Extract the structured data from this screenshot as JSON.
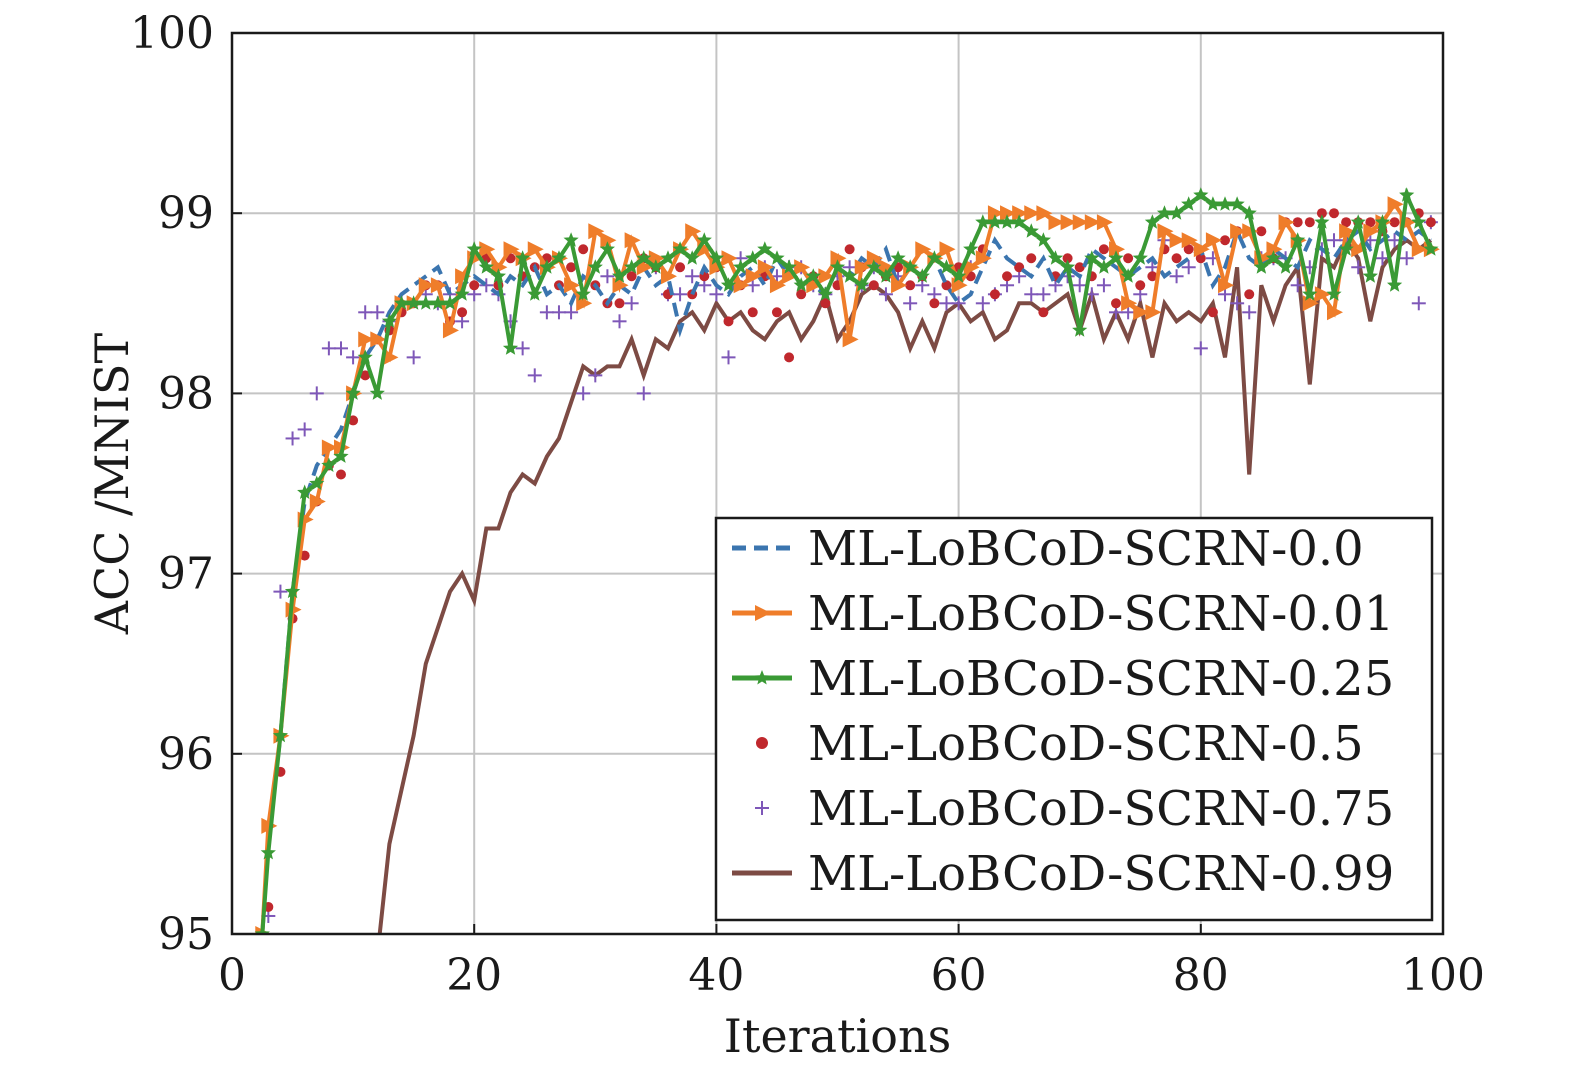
{
  "chart_data": {
    "type": "line",
    "xlabel": "Iterations",
    "ylabel": "ACC /MNIST",
    "xlim": [
      0,
      100
    ],
    "ylim": [
      95,
      100
    ],
    "xticks": [
      "0",
      "20",
      "40",
      "60",
      "80",
      "100"
    ],
    "yticks": [
      "95",
      "96",
      "97",
      "98",
      "99",
      "100"
    ],
    "grid": true,
    "legend_position": "bottom-right",
    "series": [
      {
        "name": "ML-LoBCoD-SCRN-0.0",
        "style": "dashed",
        "color": "#3b75af",
        "x": [
          2.5,
          3,
          4,
          5,
          6,
          7,
          8,
          9,
          10,
          11,
          12,
          13,
          14,
          15,
          16,
          17,
          18,
          19,
          20,
          21,
          22,
          23,
          24,
          25,
          26,
          27,
          28,
          29,
          30,
          31,
          32,
          33,
          34,
          35,
          36,
          37,
          38,
          39,
          40,
          41,
          42,
          43,
          44,
          45,
          46,
          47,
          48,
          49,
          50,
          51,
          52,
          53,
          54,
          55,
          56,
          57,
          58,
          59,
          60,
          61,
          62,
          63,
          64,
          65,
          66,
          67,
          68,
          69,
          70,
          71,
          72,
          73,
          74,
          75,
          76,
          77,
          78,
          79,
          80,
          81,
          82,
          83,
          84,
          85,
          86,
          87,
          88,
          89,
          90,
          91,
          92,
          93,
          94,
          95,
          96,
          97,
          98,
          99
        ],
        "y": [
          95,
          95.5,
          96.1,
          96.9,
          97.4,
          97.6,
          97.7,
          97.8,
          98.0,
          98.2,
          98.3,
          98.45,
          98.55,
          98.6,
          98.65,
          98.7,
          98.55,
          98.6,
          98.65,
          98.6,
          98.55,
          98.65,
          98.6,
          98.7,
          98.55,
          98.6,
          98.5,
          98.65,
          98.6,
          98.5,
          98.6,
          98.55,
          98.7,
          98.6,
          98.65,
          98.35,
          98.55,
          98.7,
          98.6,
          98.55,
          98.65,
          98.7,
          98.6,
          98.75,
          98.65,
          98.7,
          98.6,
          98.55,
          98.7,
          98.65,
          98.75,
          98.7,
          98.8,
          98.6,
          98.7,
          98.65,
          98.75,
          98.6,
          98.5,
          98.55,
          98.7,
          98.85,
          98.75,
          98.7,
          98.65,
          98.75,
          98.6,
          98.7,
          98.65,
          98.8,
          98.75,
          98.7,
          98.65,
          98.7,
          98.75,
          98.65,
          98.7,
          98.75,
          98.8,
          98.6,
          98.7,
          98.9,
          98.75,
          98.7,
          98.8,
          98.75,
          98.7,
          98.85,
          98.8,
          98.75,
          98.85,
          98.9,
          98.8,
          98.85,
          98.9,
          98.85,
          98.9,
          98.85
        ]
      },
      {
        "name": "ML-LoBCoD-SCRN-0.01",
        "style": "line-triangle",
        "color": "#ef7d2a",
        "x": [
          2.5,
          3,
          4,
          5,
          6,
          7,
          8,
          9,
          10,
          11,
          12,
          13,
          14,
          15,
          16,
          17,
          18,
          19,
          20,
          21,
          22,
          23,
          24,
          25,
          26,
          27,
          28,
          29,
          30,
          31,
          32,
          33,
          34,
          35,
          36,
          37,
          38,
          39,
          40,
          41,
          42,
          43,
          44,
          45,
          46,
          47,
          48,
          49,
          50,
          51,
          52,
          53,
          54,
          55,
          56,
          57,
          58,
          59,
          60,
          61,
          62,
          63,
          64,
          65,
          66,
          67,
          68,
          69,
          70,
          71,
          72,
          73,
          74,
          75,
          76,
          77,
          78,
          79,
          80,
          81,
          82,
          83,
          84,
          85,
          86,
          87,
          88,
          89,
          90,
          91,
          92,
          93,
          94,
          95,
          96,
          97,
          98,
          99
        ],
        "y": [
          95,
          95.6,
          96.1,
          96.8,
          97.3,
          97.4,
          97.7,
          97.7,
          98.0,
          98.3,
          98.3,
          98.2,
          98.5,
          98.5,
          98.6,
          98.6,
          98.35,
          98.65,
          98.75,
          98.8,
          98.7,
          98.8,
          98.75,
          98.8,
          98.7,
          98.75,
          98.6,
          98.5,
          98.9,
          98.85,
          98.6,
          98.85,
          98.7,
          98.75,
          98.65,
          98.8,
          98.9,
          98.8,
          98.7,
          98.75,
          98.6,
          98.65,
          98.7,
          98.6,
          98.65,
          98.7,
          98.6,
          98.65,
          98.75,
          98.3,
          98.7,
          98.75,
          98.7,
          98.6,
          98.7,
          98.8,
          98.75,
          98.8,
          98.6,
          98.7,
          98.75,
          99.0,
          99.0,
          99.0,
          99.0,
          99.0,
          98.95,
          98.95,
          98.95,
          98.95,
          98.95,
          98.8,
          98.5,
          98.45,
          98.45,
          98.9,
          98.85,
          98.85,
          98.8,
          98.85,
          98.6,
          98.9,
          98.9,
          98.75,
          98.8,
          98.95,
          98.85,
          98.5,
          98.55,
          98.45,
          98.9,
          98.8,
          98.9,
          98.95,
          99.05,
          98.95,
          98.8,
          98.8
        ]
      },
      {
        "name": "ML-LoBCoD-SCRN-0.25",
        "style": "line-star",
        "color": "#3a9a35",
        "x": [
          2.5,
          3,
          4,
          5,
          6,
          7,
          8,
          9,
          10,
          11,
          12,
          13,
          14,
          15,
          16,
          17,
          18,
          19,
          20,
          21,
          22,
          23,
          24,
          25,
          26,
          27,
          28,
          29,
          30,
          31,
          32,
          33,
          34,
          35,
          36,
          37,
          38,
          39,
          40,
          41,
          42,
          43,
          44,
          45,
          46,
          47,
          48,
          49,
          50,
          51,
          52,
          53,
          54,
          55,
          56,
          57,
          58,
          59,
          60,
          61,
          62,
          63,
          64,
          65,
          66,
          67,
          68,
          69,
          70,
          71,
          72,
          73,
          74,
          75,
          76,
          77,
          78,
          79,
          80,
          81,
          82,
          83,
          84,
          85,
          86,
          87,
          88,
          89,
          90,
          91,
          92,
          93,
          94,
          95,
          96,
          97,
          98,
          99
        ],
        "y": [
          95,
          95.45,
          96.1,
          96.9,
          97.45,
          97.5,
          97.6,
          97.65,
          98.0,
          98.2,
          98.0,
          98.4,
          98.5,
          98.5,
          98.5,
          98.5,
          98.5,
          98.55,
          98.8,
          98.7,
          98.65,
          98.25,
          98.75,
          98.55,
          98.7,
          98.75,
          98.85,
          98.55,
          98.7,
          98.8,
          98.65,
          98.7,
          98.75,
          98.7,
          98.75,
          98.8,
          98.75,
          98.85,
          98.75,
          98.6,
          98.7,
          98.75,
          98.8,
          98.75,
          98.7,
          98.6,
          98.65,
          98.55,
          98.7,
          98.65,
          98.6,
          98.7,
          98.65,
          98.75,
          98.7,
          98.65,
          98.75,
          98.7,
          98.65,
          98.8,
          98.95,
          98.95,
          98.95,
          98.95,
          98.9,
          98.85,
          98.75,
          98.7,
          98.35,
          98.75,
          98.7,
          98.75,
          98.65,
          98.75,
          98.95,
          99.0,
          99.0,
          99.05,
          99.1,
          99.05,
          99.05,
          99.05,
          99.0,
          98.7,
          98.75,
          98.7,
          98.85,
          98.55,
          98.95,
          98.55,
          98.8,
          98.95,
          98.65,
          98.95,
          98.6,
          99.1,
          98.95,
          98.8
        ]
      },
      {
        "name": "ML-LoBCoD-SCRN-0.5",
        "style": "dots",
        "color": "#c0282d",
        "x": [
          3,
          4,
          5,
          6,
          7,
          8,
          9,
          10,
          11,
          12,
          13,
          14,
          15,
          16,
          17,
          18,
          19,
          20,
          21,
          22,
          23,
          24,
          25,
          26,
          27,
          28,
          29,
          30,
          31,
          32,
          33,
          34,
          35,
          36,
          37,
          38,
          39,
          40,
          41,
          42,
          43,
          44,
          45,
          46,
          47,
          48,
          49,
          50,
          51,
          52,
          53,
          54,
          55,
          56,
          57,
          58,
          59,
          60,
          61,
          62,
          63,
          64,
          65,
          66,
          67,
          68,
          69,
          70,
          71,
          72,
          73,
          74,
          75,
          76,
          77,
          78,
          79,
          80,
          81,
          82,
          83,
          84,
          85,
          86,
          87,
          88,
          89,
          90,
          91,
          92,
          93,
          94,
          95,
          96,
          97,
          98,
          99
        ],
        "y": [
          95.15,
          95.9,
          96.75,
          97.1,
          97.4,
          97.6,
          97.55,
          97.85,
          98.1,
          98.3,
          98.35,
          98.45,
          98.5,
          98.6,
          98.6,
          98.4,
          98.45,
          98.6,
          98.75,
          98.6,
          98.75,
          98.65,
          98.7,
          98.75,
          98.6,
          98.7,
          98.8,
          98.6,
          98.5,
          98.5,
          98.65,
          98.75,
          98.7,
          98.55,
          98.7,
          98.55,
          98.65,
          98.7,
          98.4,
          98.6,
          98.45,
          98.65,
          98.45,
          98.2,
          98.55,
          98.65,
          98.5,
          98.6,
          98.8,
          98.7,
          98.6,
          98.65,
          98.7,
          98.6,
          98.65,
          98.5,
          98.6,
          98.7,
          98.65,
          98.8,
          98.55,
          98.65,
          98.7,
          98.75,
          98.45,
          98.65,
          98.75,
          98.7,
          98.65,
          98.8,
          98.5,
          98.75,
          98.6,
          98.65,
          98.8,
          98.75,
          98.8,
          98.75,
          98.45,
          98.85,
          98.9,
          98.55,
          98.9,
          98.75,
          98.95,
          98.95,
          98.95,
          99.0,
          99.0,
          98.95,
          98.95,
          98.95,
          98.9,
          98.95,
          98.95,
          99.0,
          98.95
        ]
      },
      {
        "name": "ML-LoBCoD-SCRN-0.75",
        "style": "plus",
        "color": "#7e57b8",
        "x": [
          3,
          4,
          5,
          6,
          7,
          8,
          9,
          10,
          11,
          12,
          13,
          14,
          15,
          16,
          17,
          18,
          19,
          20,
          21,
          22,
          23,
          24,
          25,
          26,
          27,
          28,
          29,
          30,
          31,
          32,
          33,
          34,
          35,
          36,
          37,
          38,
          39,
          40,
          41,
          42,
          43,
          44,
          45,
          46,
          47,
          48,
          49,
          50,
          51,
          52,
          53,
          54,
          55,
          56,
          57,
          58,
          59,
          60,
          61,
          62,
          63,
          64,
          65,
          66,
          67,
          68,
          69,
          70,
          71,
          72,
          73,
          74,
          75,
          76,
          77,
          78,
          79,
          80,
          81,
          82,
          83,
          84,
          85,
          86,
          87,
          88,
          89,
          90,
          91,
          92,
          93,
          94,
          95,
          96,
          97,
          98,
          99
        ],
        "y": [
          95.1,
          96.9,
          97.75,
          97.8,
          98.0,
          98.25,
          98.25,
          98.2,
          98.45,
          98.45,
          98.4,
          98.5,
          98.2,
          98.55,
          98.5,
          98.55,
          98.4,
          98.55,
          98.6,
          98.55,
          98.4,
          98.25,
          98.1,
          98.45,
          98.45,
          98.45,
          98.0,
          98.1,
          98.65,
          98.4,
          98.5,
          98.0,
          98.7,
          98.55,
          98.55,
          98.65,
          98.6,
          98.55,
          98.2,
          98.75,
          98.6,
          98.7,
          98.65,
          98.7,
          98.7,
          98.6,
          98.55,
          98.65,
          98.7,
          98.6,
          98.7,
          98.55,
          98.65,
          98.5,
          98.6,
          98.55,
          98.5,
          98.5,
          98.7,
          98.5,
          98.55,
          98.6,
          98.65,
          98.55,
          98.55,
          98.6,
          98.65,
          98.6,
          98.55,
          98.6,
          98.45,
          98.45,
          98.55,
          98.7,
          98.85,
          98.65,
          98.7,
          98.25,
          98.75,
          98.55,
          98.5,
          98.45,
          98.75,
          98.75,
          98.75,
          98.6,
          98.7,
          98.8,
          98.85,
          98.85,
          98.7,
          98.85,
          98.75,
          98.85,
          98.75,
          98.5,
          98.95
        ]
      },
      {
        "name": "ML-LoBCoD-SCRN-0.99",
        "style": "solid",
        "color": "#7d4b44",
        "x": [
          12.2,
          13,
          14,
          15,
          16,
          17,
          18,
          19,
          20,
          21,
          22,
          23,
          24,
          25,
          26,
          27,
          28,
          29,
          30,
          31,
          32,
          33,
          34,
          35,
          36,
          37,
          38,
          39,
          40,
          41,
          42,
          43,
          44,
          45,
          46,
          47,
          48,
          49,
          50,
          51,
          52,
          53,
          54,
          55,
          56,
          57,
          58,
          59,
          60,
          61,
          62,
          63,
          64,
          65,
          66,
          67,
          68,
          69,
          70,
          71,
          72,
          73,
          74,
          75,
          76,
          77,
          78,
          79,
          80,
          81,
          82,
          83,
          84,
          85,
          86,
          87,
          88,
          89,
          90,
          91,
          92,
          93,
          94,
          95,
          96,
          97,
          98,
          99
        ],
        "y": [
          95,
          95.5,
          95.8,
          96.1,
          96.5,
          96.7,
          96.9,
          97.0,
          96.85,
          97.25,
          97.25,
          97.45,
          97.55,
          97.5,
          97.65,
          97.75,
          97.95,
          98.15,
          98.1,
          98.15,
          98.15,
          98.3,
          98.1,
          98.3,
          98.25,
          98.4,
          98.45,
          98.35,
          98.5,
          98.4,
          98.45,
          98.35,
          98.3,
          98.4,
          98.45,
          98.3,
          98.4,
          98.55,
          98.3,
          98.4,
          98.55,
          98.6,
          98.55,
          98.45,
          98.25,
          98.4,
          98.25,
          98.45,
          98.5,
          98.4,
          98.45,
          98.3,
          98.35,
          98.5,
          98.5,
          98.45,
          98.5,
          98.55,
          98.35,
          98.55,
          98.3,
          98.45,
          98.3,
          98.5,
          98.2,
          98.5,
          98.4,
          98.45,
          98.4,
          98.5,
          98.2,
          98.7,
          97.55,
          98.6,
          98.4,
          98.6,
          98.7,
          98.05,
          98.75,
          98.7,
          98.85,
          98.75,
          98.4,
          98.7,
          98.8,
          98.85,
          98.8,
          98.85
        ]
      }
    ]
  }
}
